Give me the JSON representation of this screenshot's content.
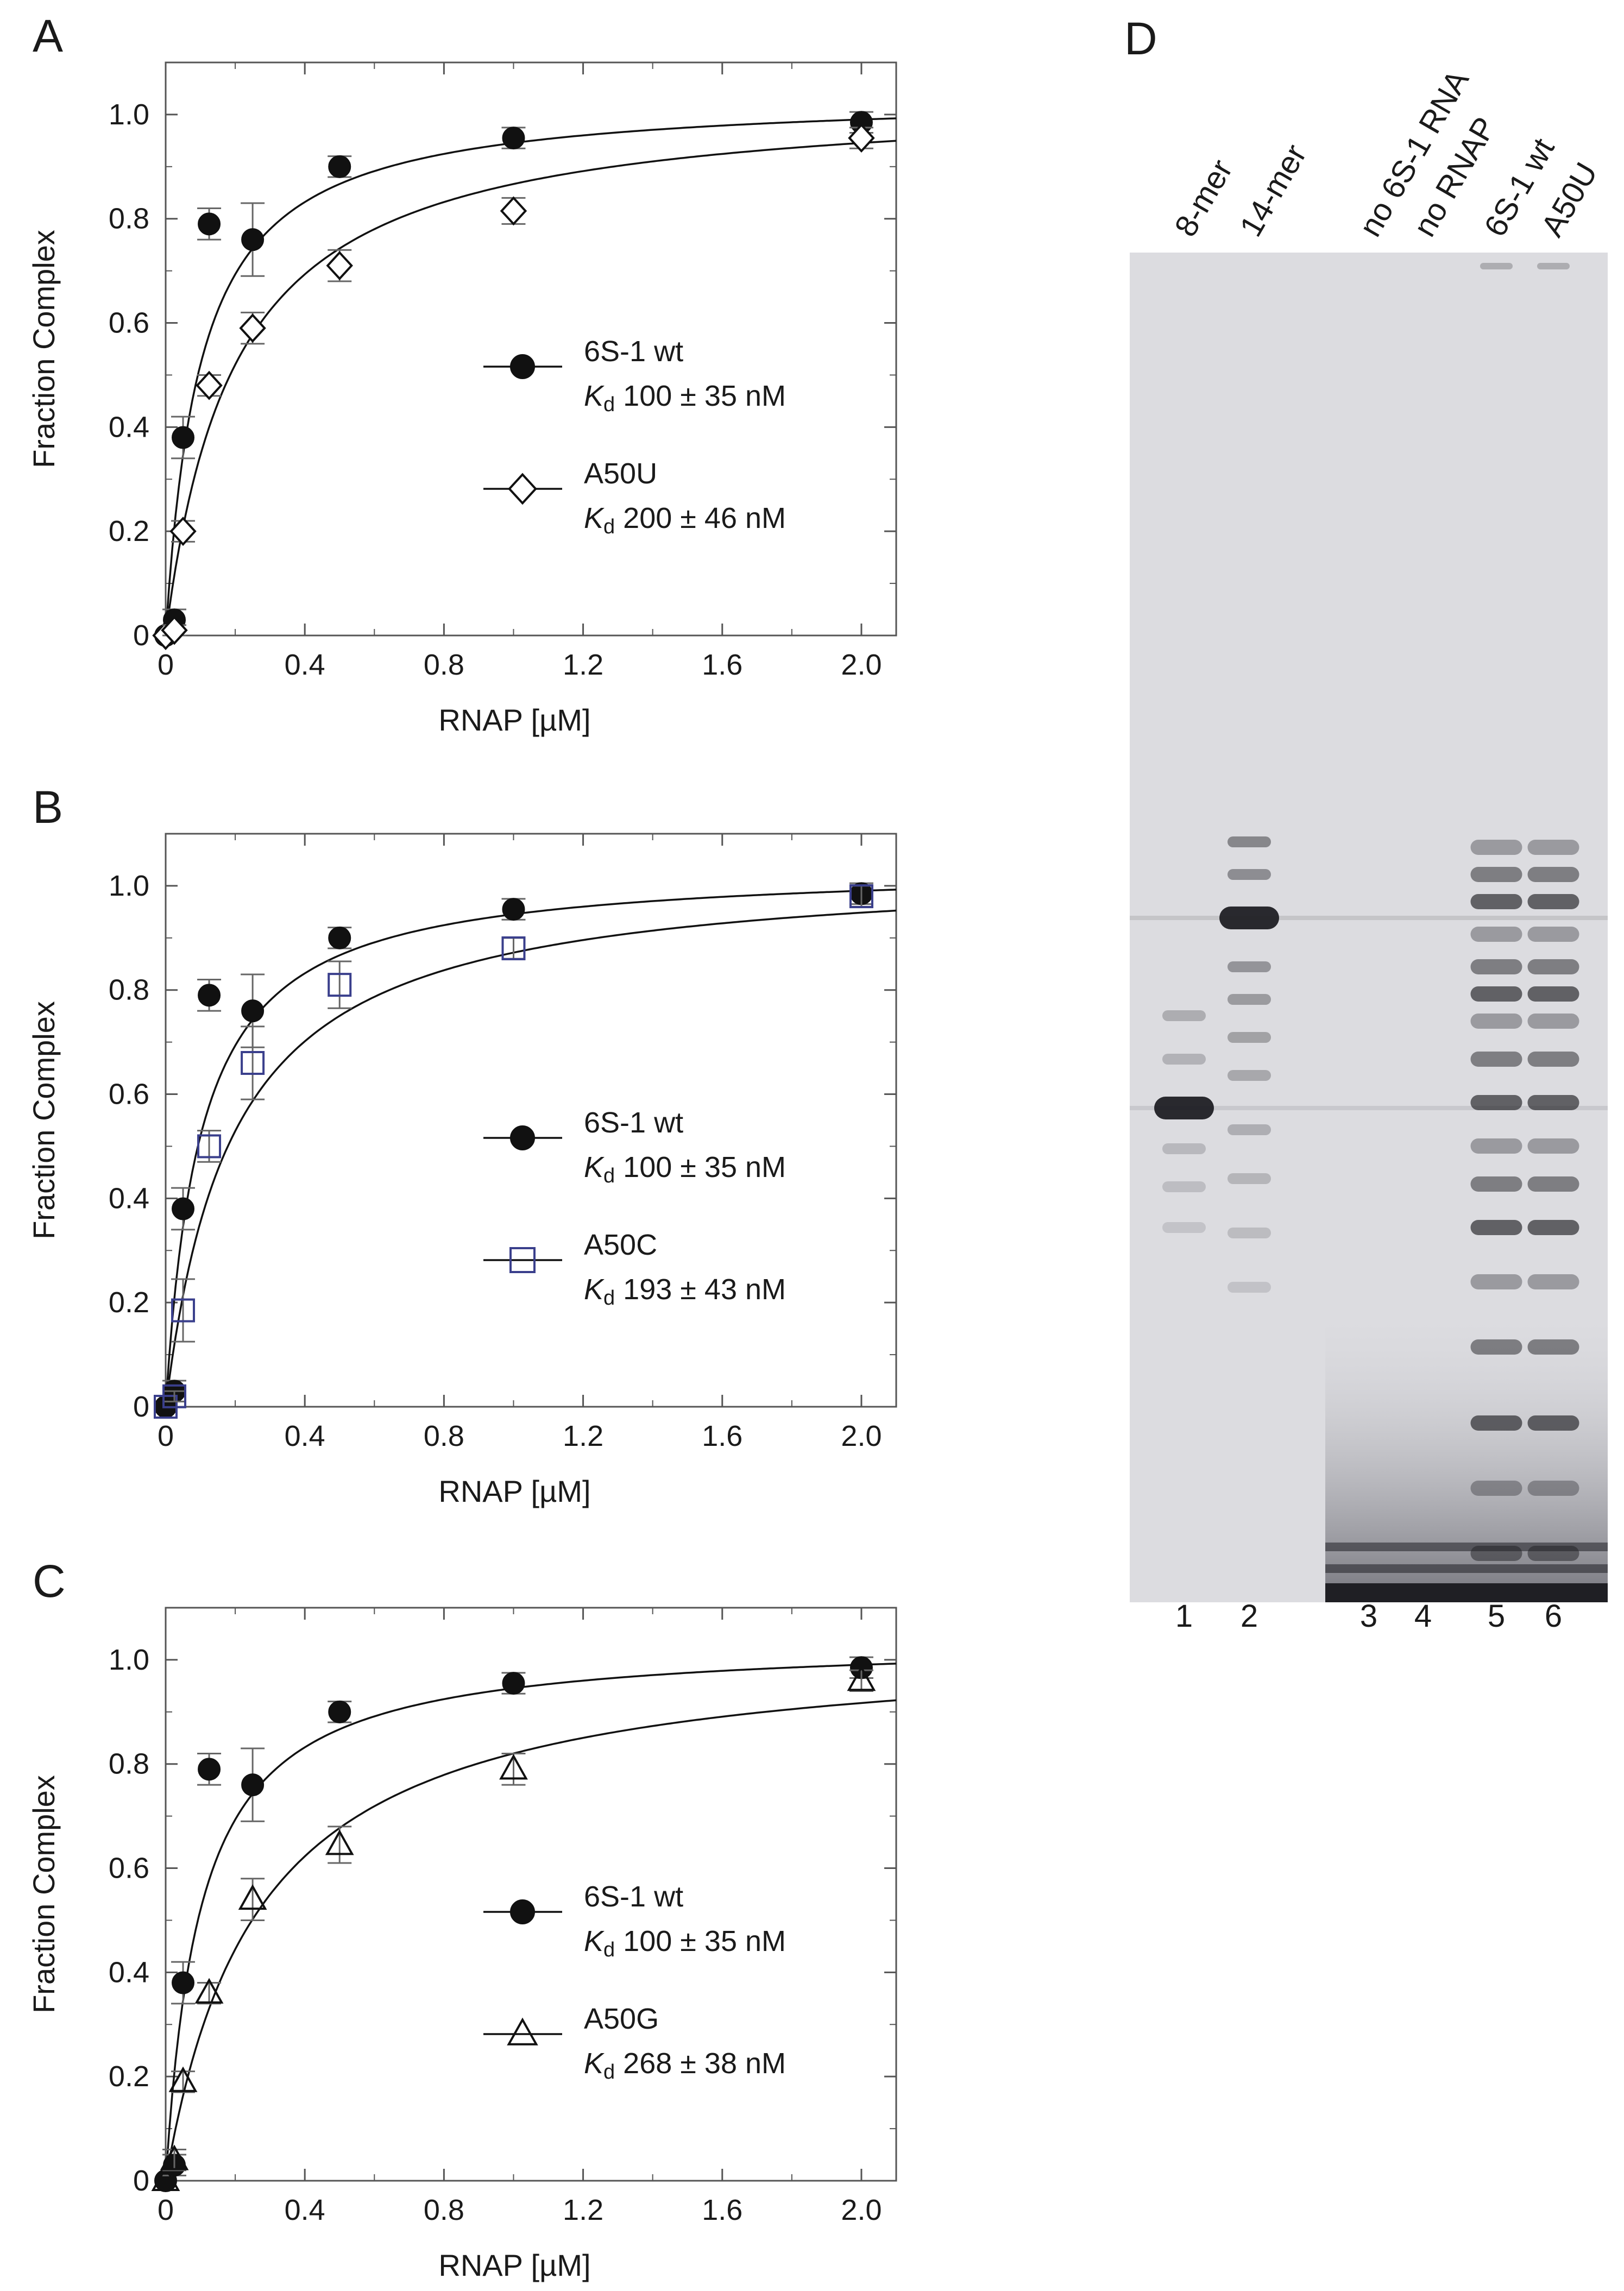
{
  "chart_data": [
    {
      "panel": "A",
      "type": "scatter",
      "xlabel": "RNAP [µM]",
      "ylabel": "Fraction Complex",
      "xlim": [
        0,
        2.1
      ],
      "ylim": [
        0,
        1.1
      ],
      "xticks": [
        "0",
        "0.4",
        "0.8",
        "1.2",
        "1.6",
        "2.0"
      ],
      "yticks": [
        "0",
        "0.2",
        "0.4",
        "0.6",
        "0.8",
        "1.0"
      ],
      "legend_position": "center-right",
      "series": [
        {
          "name": "6S-1 wt",
          "kd_label": "100 ± 35 nM",
          "kd_nM": 100,
          "marker": "filled-circle",
          "color": "#111111",
          "x": [
            0,
            0.025,
            0.05,
            0.125,
            0.25,
            0.5,
            1.0,
            2.0
          ],
          "y": [
            0,
            0.03,
            0.38,
            0.79,
            0.76,
            0.9,
            0.955,
            0.985
          ],
          "err": [
            0,
            0.02,
            0.04,
            0.03,
            0.07,
            0.02,
            0.02,
            0.02
          ]
        },
        {
          "name": "A50U",
          "kd_label": "200 ± 46 nM",
          "kd_nM": 200,
          "marker": "open-diamond",
          "color": "#111111",
          "x": [
            0,
            0.025,
            0.05,
            0.125,
            0.25,
            0.5,
            1.0,
            2.0
          ],
          "y": [
            0,
            0.01,
            0.2,
            0.48,
            0.59,
            0.71,
            0.815,
            0.955
          ],
          "err": [
            0,
            0.01,
            0.02,
            0.02,
            0.03,
            0.03,
            0.025,
            0.02
          ]
        }
      ]
    },
    {
      "panel": "B",
      "type": "scatter",
      "xlabel": "RNAP [µM]",
      "ylabel": "Fraction Complex",
      "xlim": [
        0,
        2.1
      ],
      "ylim": [
        0,
        1.1
      ],
      "xticks": [
        "0",
        "0.4",
        "0.8",
        "1.2",
        "1.6",
        "2.0"
      ],
      "yticks": [
        "0",
        "0.2",
        "0.4",
        "0.6",
        "0.8",
        "1.0"
      ],
      "legend_position": "center-right",
      "series": [
        {
          "name": "6S-1 wt",
          "kd_label": "100 ± 35 nM",
          "kd_nM": 100,
          "marker": "filled-circle",
          "color": "#111111",
          "x": [
            0,
            0.025,
            0.05,
            0.125,
            0.25,
            0.5,
            1.0,
            2.0
          ],
          "y": [
            0,
            0.03,
            0.38,
            0.79,
            0.76,
            0.9,
            0.955,
            0.985
          ],
          "err": [
            0,
            0.02,
            0.04,
            0.03,
            0.07,
            0.02,
            0.02,
            0.02
          ]
        },
        {
          "name": "A50C",
          "kd_label": "193 ± 43 nM",
          "kd_nM": 193,
          "marker": "open-square",
          "color": "#3a3f8c",
          "x": [
            0,
            0.025,
            0.05,
            0.125,
            0.25,
            0.5,
            1.0,
            2.0
          ],
          "y": [
            0,
            0.02,
            0.185,
            0.5,
            0.66,
            0.81,
            0.88,
            0.98
          ],
          "err": [
            0,
            0.01,
            0.06,
            0.03,
            0.07,
            0.045,
            0.02,
            0.02
          ]
        }
      ]
    },
    {
      "panel": "C",
      "type": "scatter",
      "xlabel": "RNAP [µM]",
      "ylabel": "Fraction Complex",
      "xlim": [
        0,
        2.1
      ],
      "ylim": [
        0,
        1.1
      ],
      "xticks": [
        "0",
        "0.4",
        "0.8",
        "1.2",
        "1.6",
        "2.0"
      ],
      "yticks": [
        "0",
        "0.2",
        "0.4",
        "0.6",
        "0.8",
        "1.0"
      ],
      "legend_position": "center-right",
      "series": [
        {
          "name": "6S-1 wt",
          "kd_label": "100 ± 35 nM",
          "kd_nM": 100,
          "marker": "filled-circle",
          "color": "#111111",
          "x": [
            0,
            0.025,
            0.05,
            0.125,
            0.25,
            0.5,
            1.0,
            2.0
          ],
          "y": [
            0,
            0.03,
            0.38,
            0.79,
            0.76,
            0.9,
            0.955,
            0.985
          ],
          "err": [
            0,
            0.02,
            0.04,
            0.03,
            0.07,
            0.02,
            0.02,
            0.02
          ]
        },
        {
          "name": "A50G",
          "kd_label": "268 ± 38 nM",
          "kd_nM": 268,
          "marker": "open-triangle",
          "color": "#111111",
          "x": [
            0,
            0.025,
            0.05,
            0.125,
            0.25,
            0.5,
            1.0,
            2.0
          ],
          "y": [
            0,
            0.04,
            0.19,
            0.36,
            0.54,
            0.645,
            0.79,
            0.96
          ],
          "err": [
            0,
            0.02,
            0.02,
            0.02,
            0.04,
            0.035,
            0.03,
            0.02
          ]
        }
      ]
    }
  ],
  "panel_letters": [
    "A",
    "B",
    "C",
    "D"
  ],
  "legend_kd_symbol": "K",
  "legend_kd_subscript": "d",
  "gel": {
    "panel": "D",
    "lane_labels": [
      "8-mer",
      "14-mer",
      "no 6S-1 RNA",
      "no RNAP",
      "6S-1 wt",
      "A50U"
    ],
    "lane_numbers": [
      "1",
      "2",
      "3",
      "4",
      "5",
      "6"
    ],
    "background_color": "#dcdce0",
    "band_color": "#1f1f24"
  }
}
